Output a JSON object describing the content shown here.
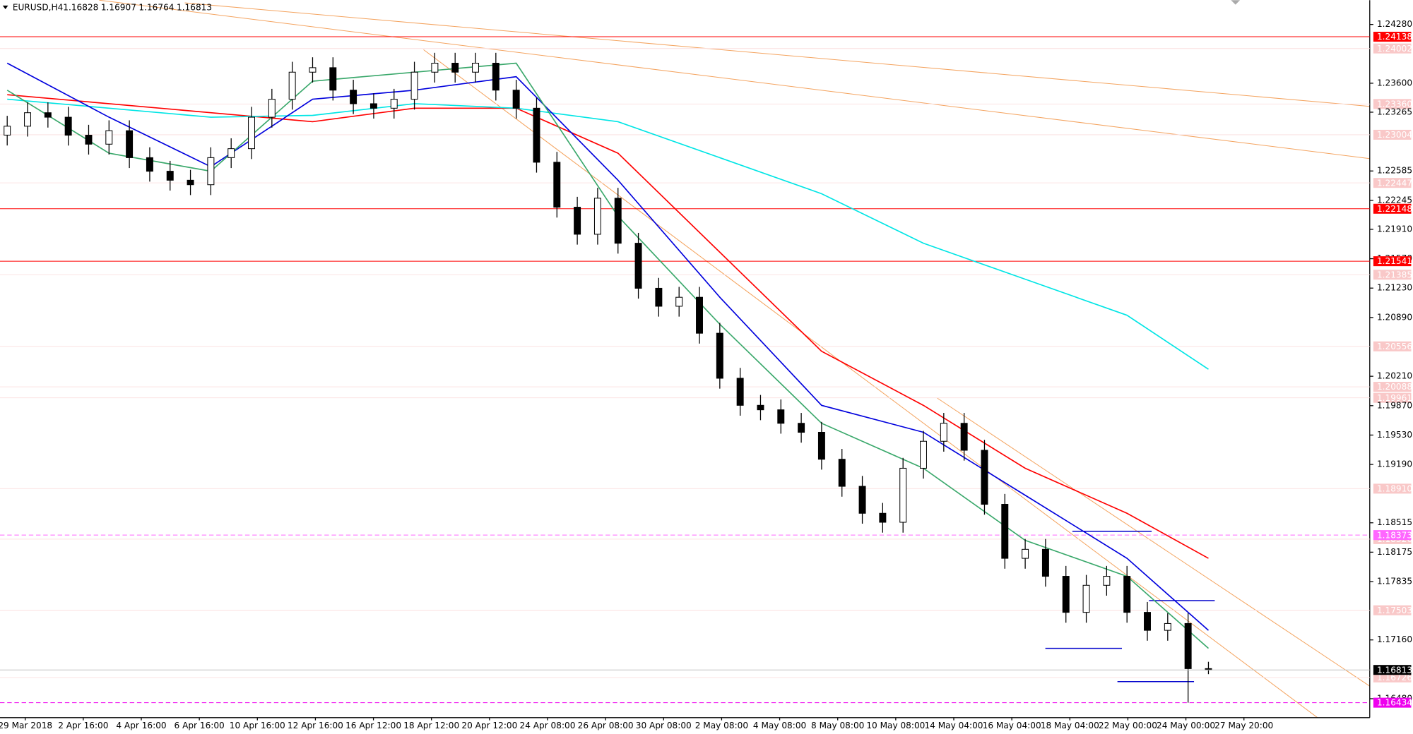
{
  "chart_data": {
    "type": "candlestick",
    "title": "EURUSD,H4",
    "open": [
      1.23,
      1.23103,
      1.23259,
      1.23207,
      1.22999,
      1.22895,
      1.23051,
      1.22739,
      1.22582,
      1.22478,
      1.22426,
      1.22739,
      1.22843,
      1.23207,
      1.23415,
      1.23728,
      1.2378,
      1.2352,
      1.23363,
      1.23311,
      1.23415,
      1.23728,
      1.23832,
      1.23728,
      1.23832,
      1.2352,
      1.23311,
      1.22686,
      1.22166,
      1.21853,
      1.2227,
      1.21749,
      1.21228,
      1.2102,
      1.21124,
      1.20708,
      1.20187,
      1.19874,
      1.19822,
      1.19666,
      1.19562,
      1.1925,
      1.18937,
      1.18625,
      1.18521,
      1.19146,
      1.19458,
      1.19666,
      1.19354,
      1.18729,
      1.18104,
      1.18208,
      1.17896,
      1.17479,
      1.17792,
      1.17896,
      1.17479,
      1.17271,
      1.1735,
      1.16828
    ],
    "high": [
      1.23223,
      1.23379,
      1.23379,
      1.23327,
      1.23119,
      1.23171,
      1.23171,
      1.22859,
      1.22702,
      1.22598,
      1.22859,
      1.22963,
      1.23327,
      1.23535,
      1.23848,
      1.239,
      1.239,
      1.2364,
      1.23483,
      1.23535,
      1.23848,
      1.23952,
      1.23952,
      1.23952,
      1.23952,
      1.2364,
      1.23431,
      1.22806,
      1.22286,
      1.2239,
      1.2239,
      1.21869,
      1.21348,
      1.21244,
      1.21244,
      1.20828,
      1.20307,
      1.19994,
      1.19942,
      1.19786,
      1.19682,
      1.1937,
      1.19057,
      1.18745,
      1.19266,
      1.19578,
      1.19786,
      1.19786,
      1.19474,
      1.18849,
      1.18328,
      1.18328,
      1.18016,
      1.17912,
      1.18016,
      1.18016,
      1.17599,
      1.1747,
      1.1747,
      1.16907
    ],
    "low": [
      1.2288,
      1.22983,
      1.23087,
      1.22879,
      1.22775,
      1.22775,
      1.22619,
      1.22462,
      1.22358,
      1.22306,
      1.22306,
      1.22619,
      1.22723,
      1.23087,
      1.23295,
      1.23608,
      1.234,
      1.23243,
      1.23191,
      1.23191,
      1.23295,
      1.23608,
      1.23608,
      1.23608,
      1.234,
      1.23191,
      1.22566,
      1.22046,
      1.21733,
      1.21733,
      1.21629,
      1.21108,
      1.209,
      1.209,
      1.20588,
      1.20067,
      1.19754,
      1.19702,
      1.19546,
      1.19442,
      1.1913,
      1.18817,
      1.18505,
      1.18401,
      1.18401,
      1.19026,
      1.19338,
      1.19234,
      1.18609,
      1.17984,
      1.17984,
      1.17776,
      1.17359,
      1.17359,
      1.17672,
      1.17359,
      1.17151,
      1.17151,
      1.16434,
      1.16764
    ],
    "close": [
      1.23103,
      1.23259,
      1.23207,
      1.22999,
      1.22895,
      1.23051,
      1.22739,
      1.22582,
      1.22478,
      1.22426,
      1.22739,
      1.22843,
      1.23207,
      1.23415,
      1.23728,
      1.2378,
      1.2352,
      1.23363,
      1.23311,
      1.23415,
      1.23728,
      1.23832,
      1.23728,
      1.23832,
      1.2352,
      1.23311,
      1.22686,
      1.22166,
      1.21853,
      1.2227,
      1.21749,
      1.21228,
      1.2102,
      1.21124,
      1.20708,
      1.20187,
      1.19874,
      1.19822,
      1.19666,
      1.19562,
      1.1925,
      1.18937,
      1.18625,
      1.18521,
      1.19146,
      1.19458,
      1.19666,
      1.19354,
      1.18729,
      1.18104,
      1.18208,
      1.17896,
      1.17479,
      1.17792,
      1.17896,
      1.17479,
      1.17271,
      1.1735,
      1.16828,
      1.16813
    ],
    "indicators": [
      {
        "color": "#ff0000",
        "x": [
          0,
          5,
          10,
          15,
          20,
          25,
          30,
          35,
          40,
          45,
          50,
          55,
          59
        ],
        "values": [
          1.23468,
          1.23363,
          1.23259,
          1.23155,
          1.23311,
          1.23311,
          1.22791,
          1.21645,
          1.20499,
          1.19874,
          1.19146,
          1.18625,
          1.18104
        ]
      },
      {
        "color": "#00e5e5",
        "x": [
          0,
          5,
          10,
          15,
          20,
          25,
          30,
          35,
          40,
          45,
          50,
          55,
          59
        ],
        "values": [
          1.23415,
          1.23311,
          1.23207,
          1.23228,
          1.23363,
          1.23311,
          1.23155,
          1.22739,
          1.22322,
          1.21749,
          1.21333,
          1.20916,
          1.20291
        ]
      },
      {
        "color": "#0000dd",
        "x": [
          0,
          5,
          10,
          15,
          20,
          25,
          30,
          35,
          40,
          45,
          50,
          55,
          59
        ],
        "values": [
          1.23832,
          1.23207,
          1.22634,
          1.23415,
          1.2352,
          1.23676,
          1.22478,
          1.21124,
          1.19874,
          1.19562,
          1.18833,
          1.18104,
          1.17271
        ]
      },
      {
        "color": "#3aa86b",
        "x": [
          0,
          5,
          10,
          15,
          20,
          25,
          30,
          35,
          40,
          45,
          50,
          55,
          59
        ],
        "values": [
          1.2352,
          1.22791,
          1.22582,
          1.23624,
          1.23728,
          1.23832,
          1.22062,
          1.20812,
          1.19666,
          1.19146,
          1.18312,
          1.17896,
          1.17063
        ]
      }
    ],
    "ylim": [
      1.16261,
      1.24561
    ],
    "yticks": [
      {
        "value": 1.2428,
        "label": "1.24280"
      },
      {
        "value": 1.236,
        "label": "1.23600"
      },
      1.23265,
      1.22585,
      1.22245,
      {
        "value": 1.2191,
        "label": "1.21910"
      },
      {
        "value": 1.2157,
        "label": "1.21570"
      },
      {
        "value": 1.2123,
        "label": "1.21230"
      },
      {
        "value": 1.2089,
        "label": "1.20890"
      },
      {
        "value": 1.2021,
        "label": "1.20210"
      },
      {
        "value": 1.1987,
        "label": "1.19870"
      },
      {
        "value": 1.1953,
        "label": "1.19530"
      },
      {
        "value": 1.1919,
        "label": "1.19190"
      },
      1.18515,
      {
        "value": 1.18175,
        "label": "1.18175"
      },
      1.17835,
      {
        "value": 1.1716,
        "label": "1.17160"
      },
      {
        "value": 1.1648,
        "label": "1.16480"
      }
    ],
    "levels": [
      {
        "value": 1.24138,
        "color": "#ff0000",
        "style": "solid"
      },
      {
        "value": 1.22148,
        "color": "#ff0000",
        "style": "solid"
      },
      {
        "value": 1.21541,
        "color": "#ff0000",
        "style": "solid"
      },
      {
        "value": 1.18373,
        "color": "#ff66ff",
        "style": "dashed"
      },
      {
        "value": 1.16434,
        "color": "#ee00ee",
        "style": "dashed"
      }
    ],
    "faded_levels": [
      1.24002,
      {
        "value": 1.2336,
        "label": "1.23360"
      },
      1.23004,
      1.22447,
      1.21385,
      1.20556,
      1.20088,
      1.19961,
      {
        "value": 1.1891,
        "label": "1.18910"
      },
      1.18326,
      1.17503,
      1.16726
    ],
    "x_labels": [
      "29 Mar 2018",
      "2 Apr 16:00",
      "4 Apr 16:00",
      "6 Apr 16:00",
      "10 Apr 16:00",
      "12 Apr 16:00",
      "16 Apr 12:00",
      "18 Apr 12:00",
      "20 Apr 12:00",
      "24 Apr 08:00",
      "26 Apr 08:00",
      "30 Apr 08:00",
      "2 May 08:00",
      "4 May 08:00",
      "8 May 08:00",
      "10 May 08:00",
      "14 May 04:00",
      "16 May 04:00",
      "18 May 04:00",
      "22 May 00:00",
      "24 May 00:00",
      "27 May 20:00"
    ]
  }
}
